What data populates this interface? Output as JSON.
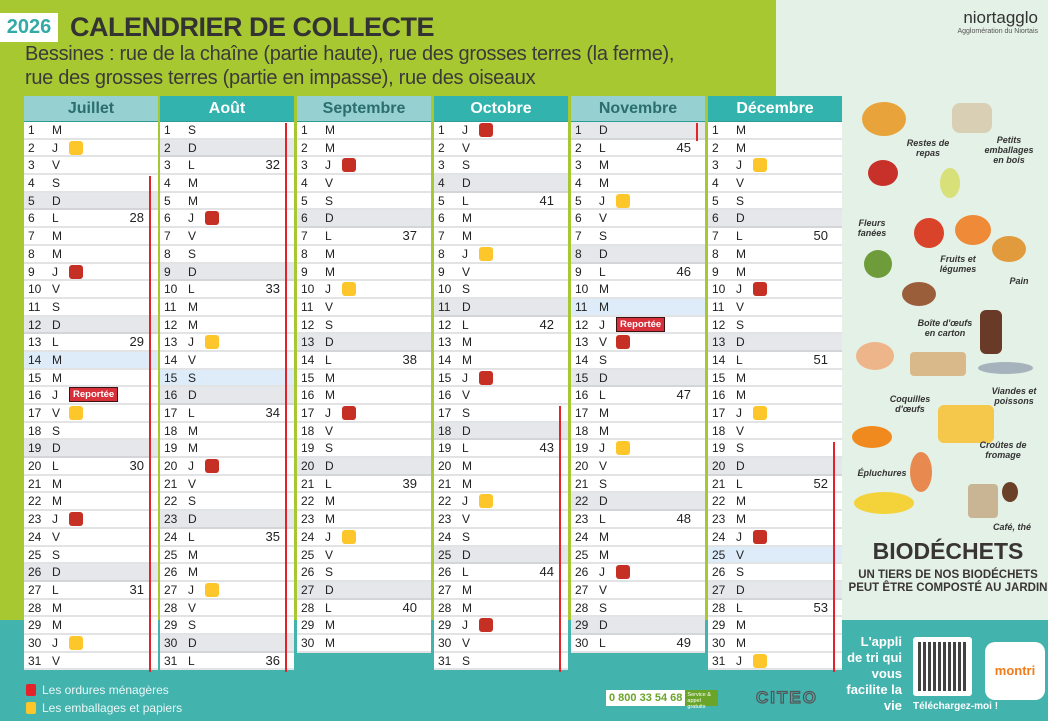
{
  "header": {
    "year": "2026",
    "title": "CALENDRIER DE COLLECTE",
    "subtitle_line1": "Bessines : rue de la chaîne (partie haute), rue des grosses terres (la ferme),",
    "subtitle_line2": "rue des grosses terres (partie en impasse), rue des oiseaux"
  },
  "logo": {
    "name": "niortagglo",
    "tagline": "Agglomération du Niortais"
  },
  "reported_label": "Reportée",
  "colors": {
    "ordures": "#c63024",
    "emballages": "#fdc62b",
    "lime": "#a8c832",
    "teal": "#43b3ae"
  },
  "months": [
    {
      "name": "Juillet",
      "style": "light",
      "holidays": [
        14
      ],
      "school_break": [
        4,
        31
      ],
      "days": [
        [
          1,
          "M",
          "",
          ""
        ],
        [
          2,
          "J",
          "",
          "Y"
        ],
        [
          3,
          "V",
          "",
          ""
        ],
        [
          4,
          "S",
          "",
          ""
        ],
        [
          5,
          "D",
          "",
          ""
        ],
        [
          6,
          "L",
          "28",
          ""
        ],
        [
          7,
          "M",
          "",
          ""
        ],
        [
          8,
          "M",
          "",
          ""
        ],
        [
          9,
          "J",
          "",
          "R"
        ],
        [
          10,
          "V",
          "",
          ""
        ],
        [
          11,
          "S",
          "",
          ""
        ],
        [
          12,
          "D",
          "",
          ""
        ],
        [
          13,
          "L",
          "29",
          ""
        ],
        [
          14,
          "M",
          "",
          ""
        ],
        [
          15,
          "M",
          "",
          ""
        ],
        [
          16,
          "J",
          "",
          "P"
        ],
        [
          17,
          "V",
          "",
          "Y"
        ],
        [
          18,
          "S",
          "",
          ""
        ],
        [
          19,
          "D",
          "",
          ""
        ],
        [
          20,
          "L",
          "30",
          ""
        ],
        [
          21,
          "M",
          "",
          ""
        ],
        [
          22,
          "M",
          "",
          ""
        ],
        [
          23,
          "J",
          "",
          "R"
        ],
        [
          24,
          "V",
          "",
          ""
        ],
        [
          25,
          "S",
          "",
          ""
        ],
        [
          26,
          "D",
          "",
          ""
        ],
        [
          27,
          "L",
          "31",
          ""
        ],
        [
          28,
          "M",
          "",
          ""
        ],
        [
          29,
          "M",
          "",
          ""
        ],
        [
          30,
          "J",
          "",
          "Y"
        ],
        [
          31,
          "V",
          "",
          ""
        ]
      ]
    },
    {
      "name": "Août",
      "style": "dark",
      "holidays": [
        15
      ],
      "school_break": [
        1,
        31
      ],
      "days": [
        [
          1,
          "S",
          "",
          ""
        ],
        [
          2,
          "D",
          "",
          ""
        ],
        [
          3,
          "L",
          "32",
          ""
        ],
        [
          4,
          "M",
          "",
          ""
        ],
        [
          5,
          "M",
          "",
          ""
        ],
        [
          6,
          "J",
          "",
          "R"
        ],
        [
          7,
          "V",
          "",
          ""
        ],
        [
          8,
          "S",
          "",
          ""
        ],
        [
          9,
          "D",
          "",
          ""
        ],
        [
          10,
          "L",
          "33",
          ""
        ],
        [
          11,
          "M",
          "",
          ""
        ],
        [
          12,
          "M",
          "",
          ""
        ],
        [
          13,
          "J",
          "",
          "Y"
        ],
        [
          14,
          "V",
          "",
          ""
        ],
        [
          15,
          "S",
          "",
          ""
        ],
        [
          16,
          "D",
          "",
          ""
        ],
        [
          17,
          "L",
          "34",
          ""
        ],
        [
          18,
          "M",
          "",
          ""
        ],
        [
          19,
          "M",
          "",
          ""
        ],
        [
          20,
          "J",
          "",
          "R"
        ],
        [
          21,
          "V",
          "",
          ""
        ],
        [
          22,
          "S",
          "",
          ""
        ],
        [
          23,
          "D",
          "",
          ""
        ],
        [
          24,
          "L",
          "35",
          ""
        ],
        [
          25,
          "M",
          "",
          ""
        ],
        [
          26,
          "M",
          "",
          ""
        ],
        [
          27,
          "J",
          "",
          "Y"
        ],
        [
          28,
          "V",
          "",
          ""
        ],
        [
          29,
          "S",
          "",
          ""
        ],
        [
          30,
          "D",
          "",
          ""
        ],
        [
          31,
          "L",
          "36",
          ""
        ]
      ]
    },
    {
      "name": "Septembre",
      "style": "light",
      "holidays": [],
      "school_break": null,
      "days": [
        [
          1,
          "M",
          "",
          ""
        ],
        [
          2,
          "M",
          "",
          ""
        ],
        [
          3,
          "J",
          "",
          "R"
        ],
        [
          4,
          "V",
          "",
          ""
        ],
        [
          5,
          "S",
          "",
          ""
        ],
        [
          6,
          "D",
          "",
          ""
        ],
        [
          7,
          "L",
          "37",
          ""
        ],
        [
          8,
          "M",
          "",
          ""
        ],
        [
          9,
          "M",
          "",
          ""
        ],
        [
          10,
          "J",
          "",
          "Y"
        ],
        [
          11,
          "V",
          "",
          ""
        ],
        [
          12,
          "S",
          "",
          ""
        ],
        [
          13,
          "D",
          "",
          ""
        ],
        [
          14,
          "L",
          "38",
          ""
        ],
        [
          15,
          "M",
          "",
          ""
        ],
        [
          16,
          "M",
          "",
          ""
        ],
        [
          17,
          "J",
          "",
          "R"
        ],
        [
          18,
          "V",
          "",
          ""
        ],
        [
          19,
          "S",
          "",
          ""
        ],
        [
          20,
          "D",
          "",
          ""
        ],
        [
          21,
          "L",
          "39",
          ""
        ],
        [
          22,
          "M",
          "",
          ""
        ],
        [
          23,
          "M",
          "",
          ""
        ],
        [
          24,
          "J",
          "",
          "Y"
        ],
        [
          25,
          "V",
          "",
          ""
        ],
        [
          26,
          "S",
          "",
          ""
        ],
        [
          27,
          "D",
          "",
          ""
        ],
        [
          28,
          "L",
          "40",
          ""
        ],
        [
          29,
          "M",
          "",
          ""
        ],
        [
          30,
          "M",
          "",
          ""
        ]
      ]
    },
    {
      "name": "Octobre",
      "style": "dark",
      "holidays": [],
      "school_break": [
        17,
        31
      ],
      "days": [
        [
          1,
          "J",
          "",
          "R"
        ],
        [
          2,
          "V",
          "",
          ""
        ],
        [
          3,
          "S",
          "",
          ""
        ],
        [
          4,
          "D",
          "",
          ""
        ],
        [
          5,
          "L",
          "41",
          ""
        ],
        [
          6,
          "M",
          "",
          ""
        ],
        [
          7,
          "M",
          "",
          ""
        ],
        [
          8,
          "J",
          "",
          "Y"
        ],
        [
          9,
          "V",
          "",
          ""
        ],
        [
          10,
          "S",
          "",
          ""
        ],
        [
          11,
          "D",
          "",
          ""
        ],
        [
          12,
          "L",
          "42",
          ""
        ],
        [
          13,
          "M",
          "",
          ""
        ],
        [
          14,
          "M",
          "",
          ""
        ],
        [
          15,
          "J",
          "",
          "R"
        ],
        [
          16,
          "V",
          "",
          ""
        ],
        [
          17,
          "S",
          "",
          ""
        ],
        [
          18,
          "D",
          "",
          ""
        ],
        [
          19,
          "L",
          "43",
          ""
        ],
        [
          20,
          "M",
          "",
          ""
        ],
        [
          21,
          "M",
          "",
          ""
        ],
        [
          22,
          "J",
          "",
          "Y"
        ],
        [
          23,
          "V",
          "",
          ""
        ],
        [
          24,
          "S",
          "",
          ""
        ],
        [
          25,
          "D",
          "",
          ""
        ],
        [
          26,
          "L",
          "44",
          ""
        ],
        [
          27,
          "M",
          "",
          ""
        ],
        [
          28,
          "M",
          "",
          ""
        ],
        [
          29,
          "J",
          "",
          "R"
        ],
        [
          30,
          "V",
          "",
          ""
        ],
        [
          31,
          "S",
          "",
          ""
        ]
      ]
    },
    {
      "name": "Novembre",
      "style": "light",
      "holidays": [
        11
      ],
      "school_break": [
        1,
        1
      ],
      "days": [
        [
          1,
          "D",
          "",
          ""
        ],
        [
          2,
          "L",
          "45",
          ""
        ],
        [
          3,
          "M",
          "",
          ""
        ],
        [
          4,
          "M",
          "",
          ""
        ],
        [
          5,
          "J",
          "",
          "Y"
        ],
        [
          6,
          "V",
          "",
          ""
        ],
        [
          7,
          "S",
          "",
          ""
        ],
        [
          8,
          "D",
          "",
          ""
        ],
        [
          9,
          "L",
          "46",
          ""
        ],
        [
          10,
          "M",
          "",
          ""
        ],
        [
          11,
          "M",
          "",
          ""
        ],
        [
          12,
          "J",
          "",
          "P"
        ],
        [
          13,
          "V",
          "",
          "R"
        ],
        [
          14,
          "S",
          "",
          ""
        ],
        [
          15,
          "D",
          "",
          ""
        ],
        [
          16,
          "L",
          "47",
          ""
        ],
        [
          17,
          "M",
          "",
          ""
        ],
        [
          18,
          "M",
          "",
          ""
        ],
        [
          19,
          "J",
          "",
          "Y"
        ],
        [
          20,
          "V",
          "",
          ""
        ],
        [
          21,
          "S",
          "",
          ""
        ],
        [
          22,
          "D",
          "",
          ""
        ],
        [
          23,
          "L",
          "48",
          ""
        ],
        [
          24,
          "M",
          "",
          ""
        ],
        [
          25,
          "M",
          "",
          ""
        ],
        [
          26,
          "J",
          "",
          "R"
        ],
        [
          27,
          "V",
          "",
          ""
        ],
        [
          28,
          "S",
          "",
          ""
        ],
        [
          29,
          "D",
          "",
          ""
        ],
        [
          30,
          "L",
          "49",
          ""
        ]
      ]
    },
    {
      "name": "Décembre",
      "style": "dark",
      "holidays": [
        25
      ],
      "school_break": [
        19,
        31
      ],
      "days": [
        [
          1,
          "M",
          "",
          ""
        ],
        [
          2,
          "M",
          "",
          ""
        ],
        [
          3,
          "J",
          "",
          "Y"
        ],
        [
          4,
          "V",
          "",
          ""
        ],
        [
          5,
          "S",
          "",
          ""
        ],
        [
          6,
          "D",
          "",
          ""
        ],
        [
          7,
          "L",
          "50",
          ""
        ],
        [
          8,
          "M",
          "",
          ""
        ],
        [
          9,
          "M",
          "",
          ""
        ],
        [
          10,
          "J",
          "",
          "R"
        ],
        [
          11,
          "V",
          "",
          ""
        ],
        [
          12,
          "S",
          "",
          ""
        ],
        [
          13,
          "D",
          "",
          ""
        ],
        [
          14,
          "L",
          "51",
          ""
        ],
        [
          15,
          "M",
          "",
          ""
        ],
        [
          16,
          "M",
          "",
          ""
        ],
        [
          17,
          "J",
          "",
          "Y"
        ],
        [
          18,
          "V",
          "",
          ""
        ],
        [
          19,
          "S",
          "",
          ""
        ],
        [
          20,
          "D",
          "",
          ""
        ],
        [
          21,
          "L",
          "52",
          ""
        ],
        [
          22,
          "M",
          "",
          ""
        ],
        [
          23,
          "M",
          "",
          ""
        ],
        [
          24,
          "J",
          "",
          "R"
        ],
        [
          25,
          "V",
          "",
          ""
        ],
        [
          26,
          "S",
          "",
          ""
        ],
        [
          27,
          "D",
          "",
          ""
        ],
        [
          28,
          "L",
          "53",
          ""
        ],
        [
          29,
          "M",
          "",
          ""
        ],
        [
          30,
          "M",
          "",
          ""
        ],
        [
          31,
          "J",
          "",
          "Y"
        ]
      ]
    }
  ],
  "biodechets": {
    "labels": [
      "Restes de repas",
      "Petits emballages en bois",
      "Fleurs fanées",
      "Fruits et légumes",
      "Pain",
      "Boîte d'œufs en carton",
      "Viandes et poissons",
      "Coquilles d'œufs",
      "Croûtes de fromage",
      "Épluchures",
      "Café, thé"
    ],
    "title": "BIODÉCHETS",
    "subtitle": "UN TIERS DE NOS BIODÉCHETS PEUT ÊTRE COMPOSTÉ AU JARDIN"
  },
  "app": {
    "tagline": "L'appli de tri qui vous facilite la vie",
    "brand": "montri",
    "download": "Téléchargez-moi !"
  },
  "legend": [
    {
      "label": "Les ordures ménagères",
      "color": "#e3222a"
    },
    {
      "label": "Les emballages et papiers",
      "color": "#fdc62b"
    }
  ],
  "footer": {
    "phone": "0 800 33 54 68",
    "phone_tag": "Service & appel gratuits",
    "partner": "CITEO"
  }
}
